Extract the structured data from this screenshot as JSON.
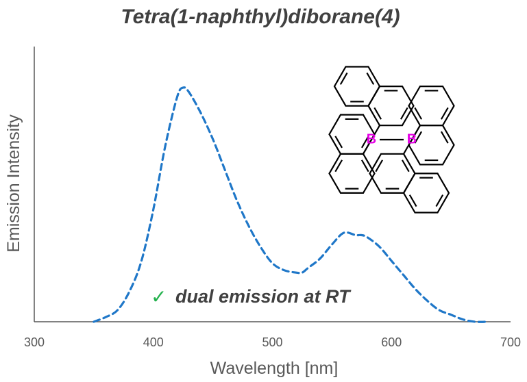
{
  "chart_data": {
    "type": "line",
    "title": "Tetra(1-naphthyl)diborane(4)",
    "xlabel": "Wavelength [nm]",
    "ylabel": "Emission Intensity",
    "xlim": [
      300,
      700
    ],
    "ylim": [
      0,
      1
    ],
    "x_ticks": [
      "300",
      "400",
      "500",
      "600",
      "700"
    ],
    "y_ticks": [],
    "grid": false,
    "series": [
      {
        "color": "#1f77c8",
        "style": "dashed",
        "x": [
          350,
          360,
          370,
          380,
          390,
          400,
          410,
          420,
          425,
          430,
          440,
          450,
          460,
          470,
          480,
          490,
          500,
          510,
          520,
          525,
          530,
          540,
          550,
          560,
          570,
          575,
          580,
          590,
          600,
          610,
          620,
          630,
          640,
          650,
          660,
          670,
          680
        ],
        "y": [
          0.0,
          0.02,
          0.05,
          0.13,
          0.26,
          0.48,
          0.75,
          0.96,
          1.0,
          0.98,
          0.89,
          0.78,
          0.65,
          0.52,
          0.41,
          0.32,
          0.25,
          0.22,
          0.21,
          0.21,
          0.23,
          0.27,
          0.33,
          0.38,
          0.37,
          0.37,
          0.36,
          0.32,
          0.26,
          0.2,
          0.14,
          0.09,
          0.05,
          0.03,
          0.01,
          0.0,
          0.0
        ]
      }
    ],
    "annotation": {
      "check": "✓",
      "text": "dual emission at RT"
    },
    "molecule_atoms": [
      "B",
      "B"
    ]
  }
}
